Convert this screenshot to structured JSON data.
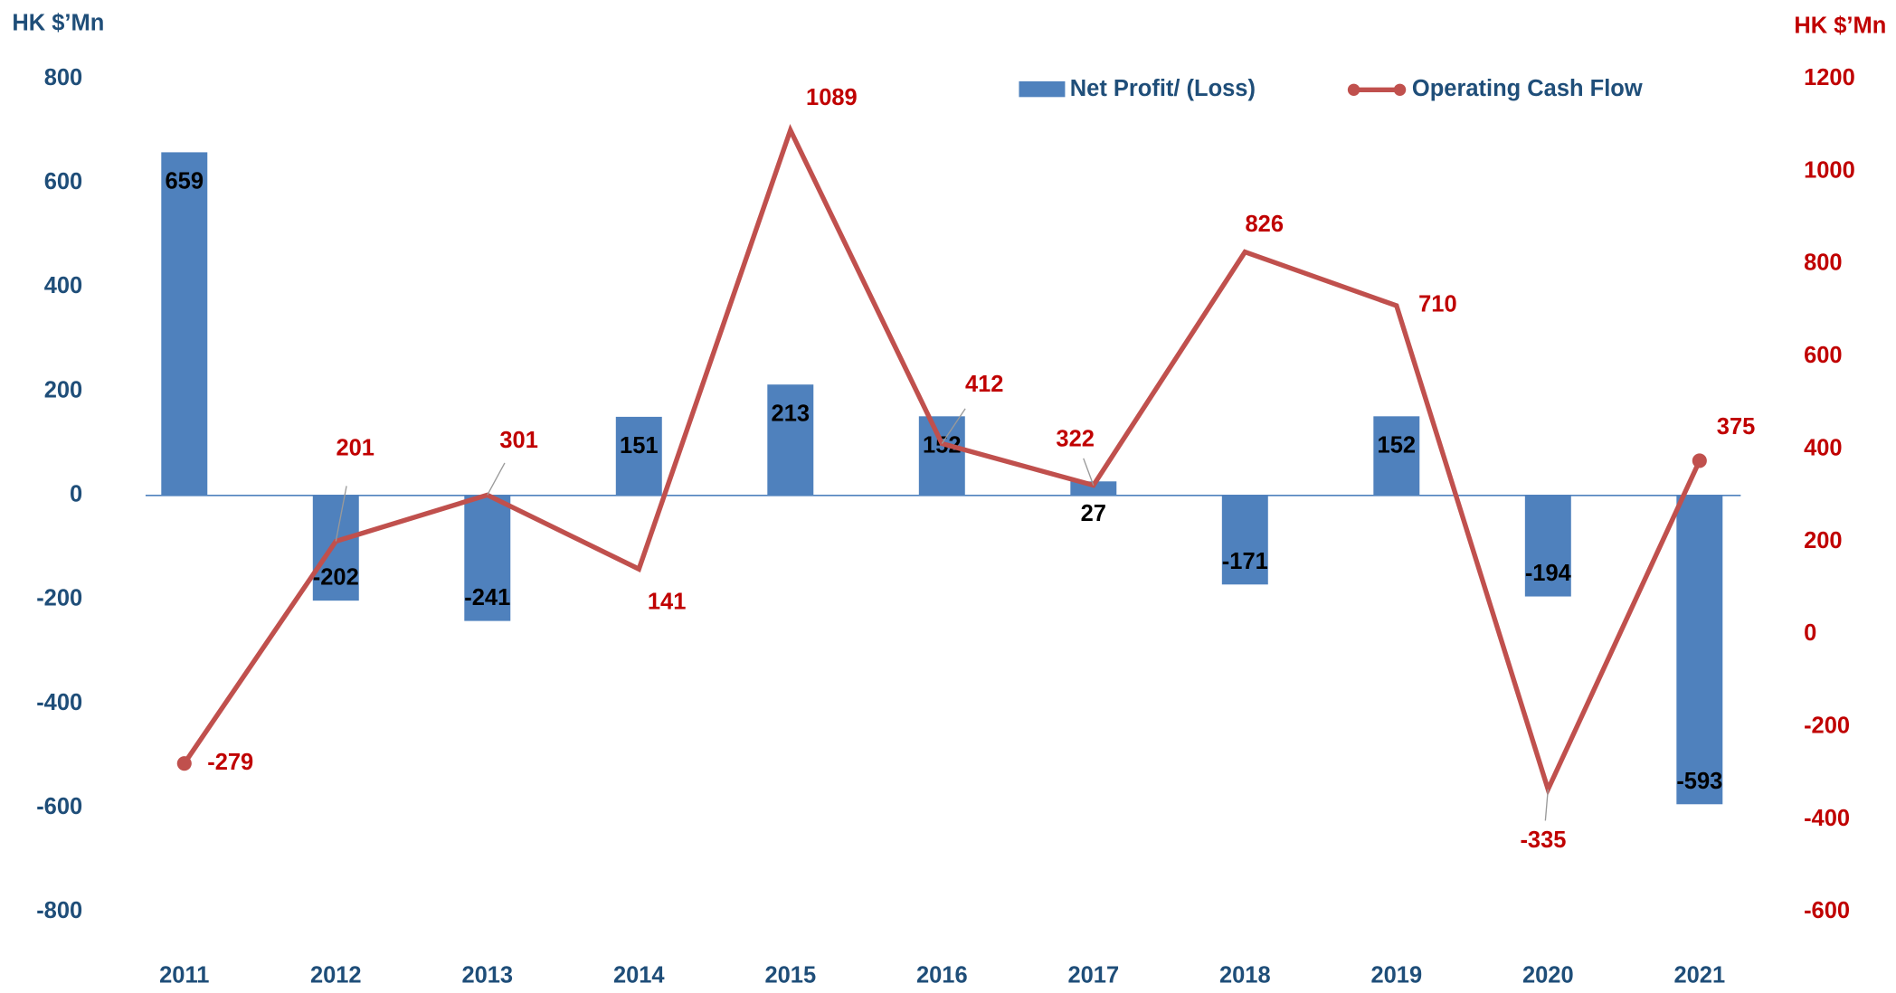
{
  "chart_data": {
    "type": "bar_line",
    "y_label": "HK $’Mn",
    "y2_label": "HK $’Mn",
    "categories": [
      "2011",
      "2012",
      "2013",
      "2014",
      "2015",
      "2016",
      "2017",
      "2018",
      "2019",
      "2020",
      "2021"
    ],
    "series": [
      {
        "name": "Net Profit/ (Loss)",
        "color": "#4f81bd",
        "type": "bar",
        "axis": "y",
        "values": [
          659,
          -202,
          -241,
          151,
          213,
          152,
          27,
          -171,
          152,
          -194,
          -593
        ]
      },
      {
        "name": "Operating Cash Flow",
        "color": "#c0504d",
        "type": "line",
        "axis": "y2",
        "values": [
          -279,
          201,
          301,
          141,
          1089,
          412,
          322,
          826,
          710,
          -335,
          375
        ]
      }
    ],
    "ylim": [
      -800,
      800
    ],
    "yticks": [
      -800,
      -600,
      -400,
      -200,
      0,
      200,
      400,
      600,
      800
    ],
    "y2lim": [
      -600,
      1200
    ],
    "y2ticks": [
      -600,
      -400,
      -200,
      0,
      200,
      400,
      600,
      800,
      1000,
      1200
    ],
    "legend": "top"
  }
}
